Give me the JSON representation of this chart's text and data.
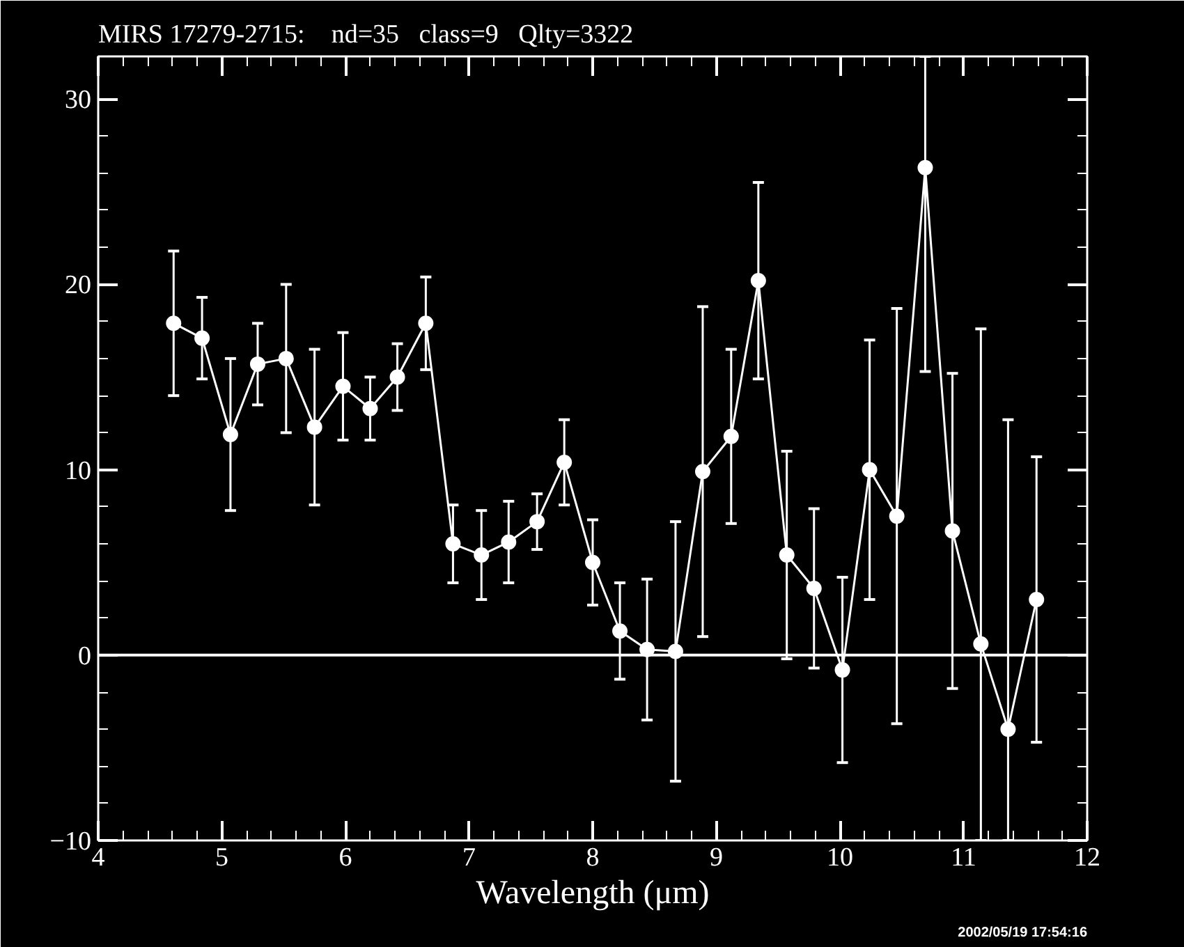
{
  "chart_data": {
    "type": "line",
    "title": "MIRS 17279-2715:    nd=35   class=9   Qlty=3322",
    "xlabel": "Wavelength (μm)",
    "x": [
      4.61,
      4.84,
      5.07,
      5.29,
      5.52,
      5.75,
      5.98,
      6.2,
      6.42,
      6.65,
      6.87,
      7.1,
      7.32,
      7.55,
      7.77,
      8.0,
      8.22,
      8.44,
      8.67,
      8.89,
      9.12,
      9.34,
      9.57,
      9.79,
      10.02,
      10.24,
      10.46,
      10.69,
      10.91,
      11.14,
      11.36,
      11.59
    ],
    "series": [
      {
        "color": "#ffffff",
        "values": [
          17.9,
          17.1,
          11.9,
          15.7,
          16.0,
          12.3,
          14.5,
          13.3,
          15.0,
          17.9,
          6.0,
          5.4,
          6.1,
          7.2,
          10.4,
          5.0,
          1.3,
          0.3,
          0.2,
          9.9,
          11.8,
          20.2,
          5.4,
          3.6,
          -0.8,
          10.0,
          7.5,
          26.3,
          6.7,
          0.6,
          -4.0,
          3.0
        ],
        "errors": [
          3.9,
          2.2,
          4.1,
          2.2,
          4.0,
          4.2,
          2.9,
          1.7,
          1.8,
          2.5,
          2.1,
          2.4,
          2.2,
          1.5,
          2.3,
          2.3,
          2.6,
          3.8,
          7.0,
          8.9,
          4.7,
          5.3,
          5.6,
          4.3,
          5.0,
          7.0,
          11.2,
          [
            15.3,
            32.3
          ],
          8.5,
          [
            -10,
            17.6
          ],
          [
            -10,
            12.7
          ],
          7.7
        ]
      }
    ],
    "xlim": [
      4,
      12
    ],
    "ylim": [
      -10,
      32.3
    ],
    "xticks": [
      4,
      5,
      6,
      7,
      8,
      9,
      10,
      11,
      12
    ],
    "yticks": [
      -10,
      0,
      10,
      20,
      30
    ],
    "ref_lines": [
      {
        "axis": "y",
        "value": 0,
        "color": "#ffffff"
      }
    ],
    "marker": "circle",
    "line_style": "solid",
    "grid": false,
    "annotations": [
      "2002/05/19 17:54:16"
    ]
  }
}
